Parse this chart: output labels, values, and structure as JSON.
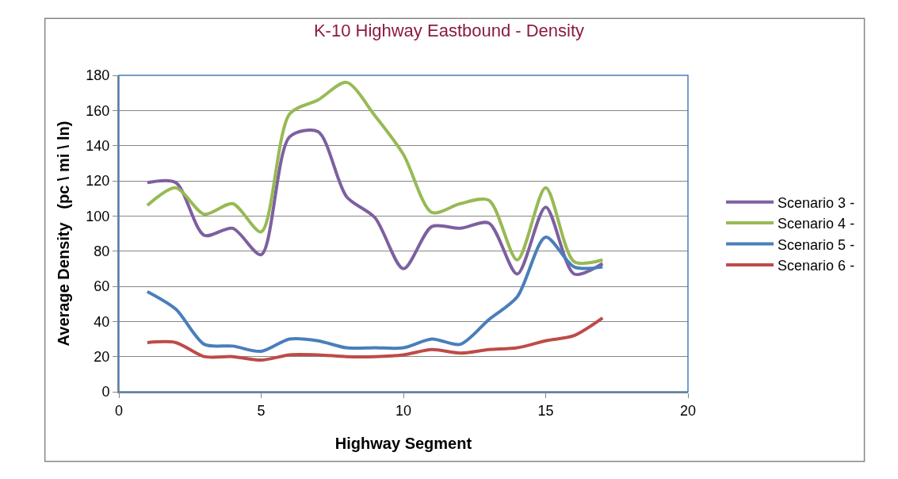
{
  "chart_data": {
    "type": "line",
    "title": "K-10 Highway Eastbound - Density",
    "xlabel": "Highway Segment",
    "ylabel": "Average Density   (pc \\ mi \\ ln)",
    "x": [
      1,
      2,
      3,
      4,
      5,
      6,
      7,
      8,
      9,
      10,
      11,
      12,
      13,
      14,
      15,
      16,
      17
    ],
    "series": [
      {
        "name": "Scenario 3 -",
        "color": "#7d60a0",
        "values": [
          119,
          119,
          89,
          93,
          78,
          145,
          148,
          111,
          99,
          70,
          94,
          93,
          96,
          67,
          105,
          67,
          73
        ]
      },
      {
        "name": "Scenario 4 -",
        "color": "#98b954",
        "values": [
          106,
          116,
          101,
          107,
          91,
          158,
          166,
          176,
          157,
          135,
          102,
          107,
          109,
          75,
          116,
          74,
          75
        ]
      },
      {
        "name": "Scenario 5 -",
        "color": "#4a7ebb",
        "values": [
          57,
          47,
          27,
          26,
          23,
          30,
          29,
          25,
          25,
          25,
          30,
          27,
          41,
          54,
          88,
          71,
          71
        ]
      },
      {
        "name": "Scenario 6 -",
        "color": "#be4b48",
        "values": [
          28,
          28,
          20,
          20,
          18,
          21,
          21,
          20,
          20,
          21,
          24,
          22,
          24,
          25,
          29,
          32,
          42
        ]
      }
    ],
    "xlim": [
      0,
      20
    ],
    "xticks": [
      0,
      5,
      10,
      15,
      20
    ],
    "ylim": [
      0,
      180
    ],
    "yticks": [
      0,
      20,
      40,
      60,
      80,
      100,
      120,
      140,
      160,
      180
    ],
    "grid": "y",
    "legend": "right",
    "marker": "none",
    "line_style": "solid"
  }
}
